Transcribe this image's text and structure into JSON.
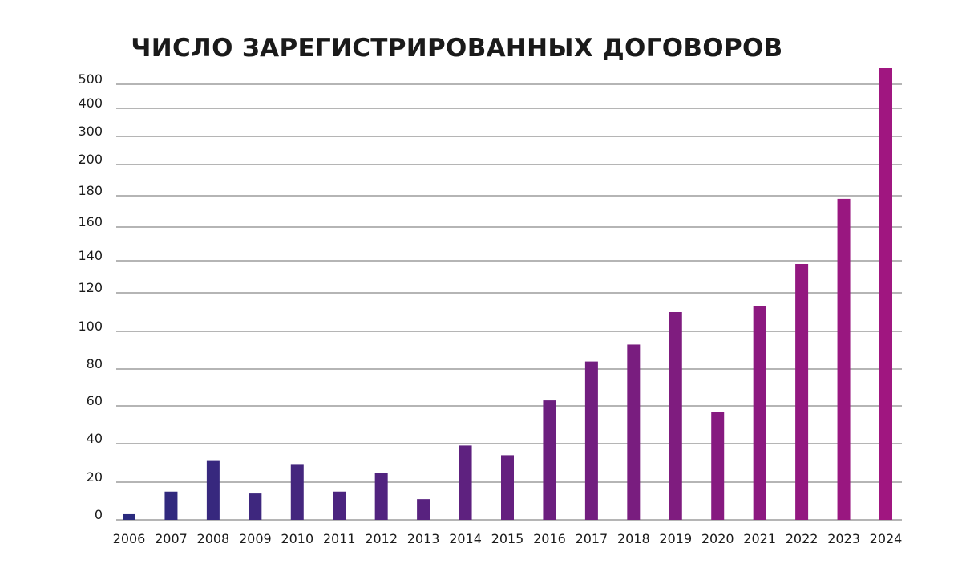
{
  "chart_data": {
    "type": "bar",
    "title": "ЧИСЛО ЗАРЕГИСТРИРОВАННЫХ ДОГОВОРОВ",
    "xlabel": "",
    "ylabel": "",
    "categories": [
      "2006",
      "2007",
      "2008",
      "2009",
      "2010",
      "2011",
      "2012",
      "2013",
      "2014",
      "2015",
      "2016",
      "2017",
      "2018",
      "2019",
      "2020",
      "2021",
      "2022",
      "2023",
      "2024"
    ],
    "values": [
      3,
      15,
      31,
      14,
      29,
      15,
      25,
      11,
      39,
      34,
      63,
      84,
      93,
      110,
      57,
      113,
      138,
      178,
      550
    ],
    "y_ticks": [
      0,
      20,
      40,
      60,
      80,
      100,
      120,
      140,
      160,
      180,
      200,
      300,
      400,
      500
    ],
    "y_scale": "piecewise-linear (non-uniform: 0–200 in steps of 20, then 300, 400, 500)",
    "ylim": [
      0,
      550
    ],
    "grid": true,
    "legend": "none",
    "bar_color_start": "#2a2a7e",
    "bar_color_end": "#a01680"
  }
}
